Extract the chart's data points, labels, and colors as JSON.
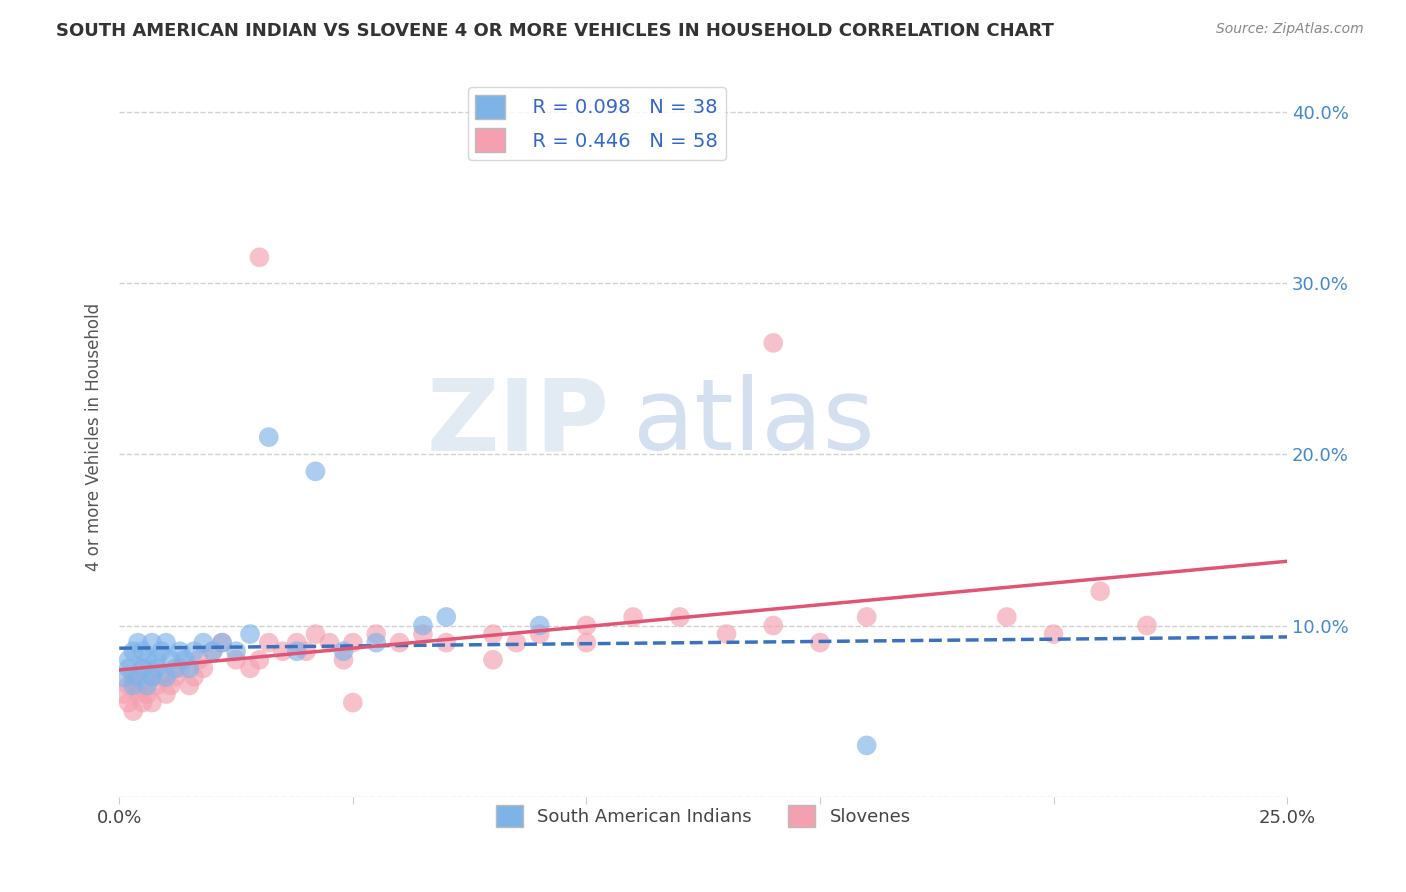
{
  "title": "SOUTH AMERICAN INDIAN VS SLOVENE 4 OR MORE VEHICLES IN HOUSEHOLD CORRELATION CHART",
  "source": "Source: ZipAtlas.com",
  "ylabel": "4 or more Vehicles in Household",
  "xlabel": "",
  "xlim": [
    0.0,
    0.25
  ],
  "ylim": [
    0.0,
    0.42
  ],
  "xticks": [
    0.0,
    0.05,
    0.1,
    0.15,
    0.2,
    0.25
  ],
  "xticklabels": [
    "0.0%",
    "",
    "",
    "",
    "",
    "25.0%"
  ],
  "yticks": [
    0.0,
    0.1,
    0.2,
    0.3,
    0.4
  ],
  "yticklabels": [
    "",
    "10.0%",
    "20.0%",
    "30.0%",
    "40.0%"
  ],
  "legend_labels": [
    "South American Indians",
    "Slovenes"
  ],
  "legend_r": [
    "R = 0.098",
    "R = 0.446"
  ],
  "legend_n": [
    "N = 38",
    "N = 58"
  ],
  "blue_color": "#7EB3E8",
  "pink_color": "#F4A0B0",
  "blue_line_color": "#3B72C0",
  "pink_line_color": "#E05575",
  "blue_scatter_x": [
    0.001,
    0.002,
    0.002,
    0.003,
    0.003,
    0.004,
    0.004,
    0.005,
    0.005,
    0.006,
    0.006,
    0.007,
    0.007,
    0.008,
    0.008,
    0.009,
    0.01,
    0.01,
    0.011,
    0.012,
    0.013,
    0.014,
    0.015,
    0.016,
    0.018,
    0.02,
    0.022,
    0.025,
    0.028,
    0.032,
    0.038,
    0.042,
    0.048,
    0.055,
    0.065,
    0.07,
    0.09,
    0.16
  ],
  "blue_scatter_y": [
    0.07,
    0.075,
    0.08,
    0.065,
    0.085,
    0.07,
    0.09,
    0.075,
    0.085,
    0.065,
    0.08,
    0.07,
    0.09,
    0.075,
    0.08,
    0.085,
    0.07,
    0.09,
    0.08,
    0.075,
    0.085,
    0.08,
    0.075,
    0.085,
    0.09,
    0.085,
    0.09,
    0.085,
    0.095,
    0.21,
    0.085,
    0.19,
    0.085,
    0.09,
    0.1,
    0.105,
    0.1,
    0.03
  ],
  "pink_scatter_x": [
    0.001,
    0.002,
    0.002,
    0.003,
    0.003,
    0.004,
    0.004,
    0.005,
    0.005,
    0.006,
    0.007,
    0.007,
    0.008,
    0.009,
    0.01,
    0.011,
    0.012,
    0.013,
    0.015,
    0.016,
    0.017,
    0.018,
    0.02,
    0.022,
    0.025,
    0.028,
    0.03,
    0.032,
    0.035,
    0.038,
    0.04,
    0.042,
    0.045,
    0.048,
    0.05,
    0.055,
    0.06,
    0.065,
    0.07,
    0.08,
    0.085,
    0.09,
    0.1,
    0.11,
    0.12,
    0.13,
    0.14,
    0.15,
    0.16,
    0.19,
    0.2,
    0.21,
    0.22,
    0.14,
    0.1,
    0.08,
    0.05,
    0.03
  ],
  "pink_scatter_y": [
    0.06,
    0.055,
    0.065,
    0.05,
    0.07,
    0.06,
    0.065,
    0.055,
    0.075,
    0.06,
    0.055,
    0.07,
    0.065,
    0.07,
    0.06,
    0.065,
    0.07,
    0.075,
    0.065,
    0.07,
    0.08,
    0.075,
    0.085,
    0.09,
    0.08,
    0.075,
    0.08,
    0.09,
    0.085,
    0.09,
    0.085,
    0.095,
    0.09,
    0.08,
    0.09,
    0.095,
    0.09,
    0.095,
    0.09,
    0.095,
    0.09,
    0.095,
    0.1,
    0.105,
    0.105,
    0.095,
    0.1,
    0.09,
    0.105,
    0.105,
    0.095,
    0.12,
    0.1,
    0.265,
    0.09,
    0.08,
    0.055,
    0.315
  ]
}
